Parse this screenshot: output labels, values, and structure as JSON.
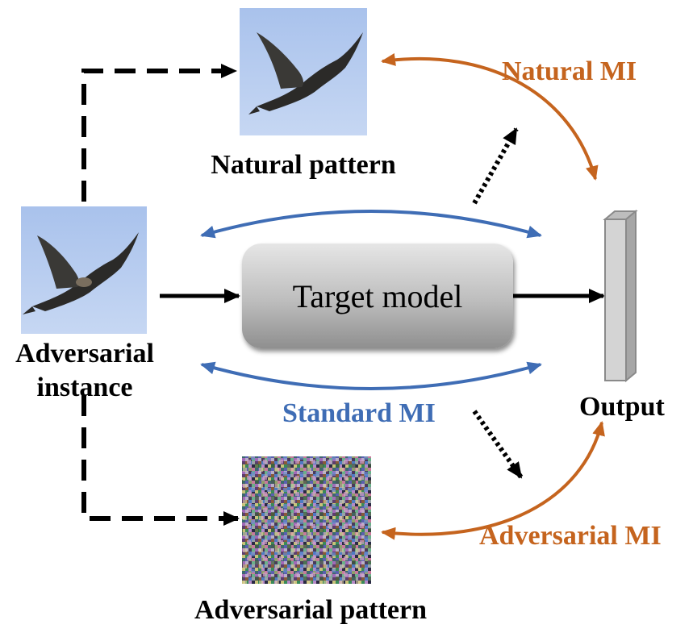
{
  "labels": {
    "natural_pattern": "Natural pattern",
    "adversarial_instance_line1": "Adversarial",
    "adversarial_instance_line2": "instance",
    "target_model": "Target model",
    "output": "Output",
    "standard_mi": "Standard MI",
    "natural_mi": "Natural MI",
    "adversarial_mi": "Adversarial MI",
    "adversarial_pattern": "Adversarial pattern"
  },
  "images": {
    "adversarial_instance": "bird-image",
    "natural_pattern": "bird-image",
    "adversarial_pattern": "noise-image"
  },
  "colors": {
    "natural_mi": "#C5641E",
    "adversarial_mi": "#C5641E",
    "standard_mi": "#3F6DB5",
    "sky": "#B7CCEF",
    "model_box_top": "#e6e6e6",
    "model_box_bottom": "#8f8f8f",
    "output_bar": "#d4d4d4"
  }
}
